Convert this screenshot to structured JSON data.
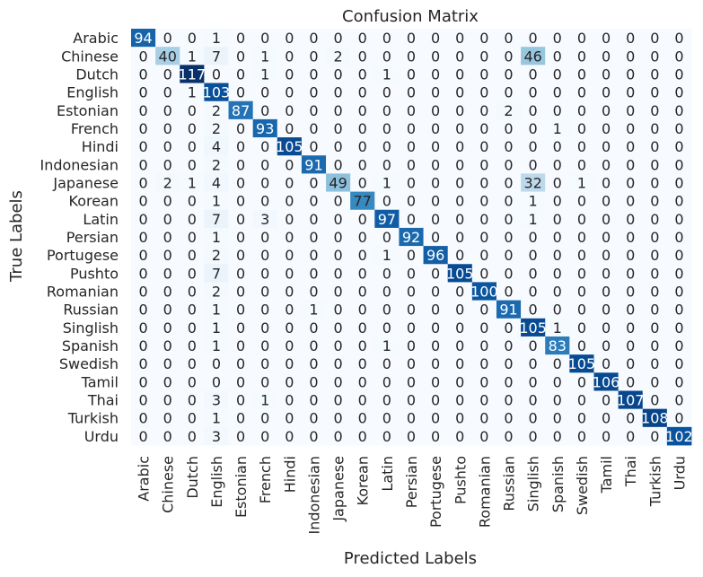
{
  "chart_data": {
    "type": "heatmap",
    "title": "Confusion Matrix",
    "xlabel": "Predicted Labels",
    "ylabel": "True Labels",
    "labels": [
      "Arabic",
      "Chinese",
      "Dutch",
      "English",
      "Estonian",
      "French",
      "Hindi",
      "Indonesian",
      "Japanese",
      "Korean",
      "Latin",
      "Persian",
      "Portugese",
      "Pushto",
      "Romanian",
      "Russian",
      "Singlish",
      "Spanish",
      "Swedish",
      "Tamil",
      "Thai",
      "Turkish",
      "Urdu"
    ],
    "matrix": [
      [
        94,
        0,
        0,
        1,
        0,
        0,
        0,
        0,
        0,
        0,
        0,
        0,
        0,
        0,
        0,
        0,
        0,
        0,
        0,
        0,
        0,
        0,
        0
      ],
      [
        0,
        40,
        1,
        7,
        0,
        1,
        0,
        0,
        2,
        0,
        0,
        0,
        0,
        0,
        0,
        0,
        46,
        0,
        0,
        0,
        0,
        0,
        0
      ],
      [
        0,
        0,
        117,
        0,
        0,
        1,
        0,
        0,
        0,
        0,
        1,
        0,
        0,
        0,
        0,
        0,
        0,
        0,
        0,
        0,
        0,
        0,
        0
      ],
      [
        0,
        0,
        1,
        103,
        0,
        0,
        0,
        0,
        0,
        0,
        0,
        0,
        0,
        0,
        0,
        0,
        0,
        0,
        0,
        0,
        0,
        0,
        0
      ],
      [
        0,
        0,
        0,
        2,
        87,
        0,
        0,
        0,
        0,
        0,
        0,
        0,
        0,
        0,
        0,
        2,
        0,
        0,
        0,
        0,
        0,
        0,
        0
      ],
      [
        0,
        0,
        0,
        2,
        0,
        93,
        0,
        0,
        0,
        0,
        0,
        0,
        0,
        0,
        0,
        0,
        0,
        1,
        0,
        0,
        0,
        0,
        0
      ],
      [
        0,
        0,
        0,
        4,
        0,
        0,
        105,
        0,
        0,
        0,
        0,
        0,
        0,
        0,
        0,
        0,
        0,
        0,
        0,
        0,
        0,
        0,
        0
      ],
      [
        0,
        0,
        0,
        2,
        0,
        0,
        0,
        91,
        0,
        0,
        0,
        0,
        0,
        0,
        0,
        0,
        0,
        0,
        0,
        0,
        0,
        0,
        0
      ],
      [
        0,
        2,
        1,
        4,
        0,
        0,
        0,
        0,
        49,
        0,
        1,
        0,
        0,
        0,
        0,
        0,
        32,
        0,
        1,
        0,
        0,
        0,
        0
      ],
      [
        0,
        0,
        0,
        1,
        0,
        0,
        0,
        0,
        0,
        77,
        0,
        0,
        0,
        0,
        0,
        0,
        1,
        0,
        0,
        0,
        0,
        0,
        0
      ],
      [
        0,
        0,
        0,
        7,
        0,
        3,
        0,
        0,
        0,
        0,
        97,
        0,
        0,
        0,
        0,
        0,
        1,
        0,
        0,
        0,
        0,
        0,
        0
      ],
      [
        0,
        0,
        0,
        1,
        0,
        0,
        0,
        0,
        0,
        0,
        0,
        92,
        0,
        0,
        0,
        0,
        0,
        0,
        0,
        0,
        0,
        0,
        0
      ],
      [
        0,
        0,
        0,
        2,
        0,
        0,
        0,
        0,
        0,
        0,
        1,
        0,
        96,
        0,
        0,
        0,
        0,
        0,
        0,
        0,
        0,
        0,
        0
      ],
      [
        0,
        0,
        0,
        7,
        0,
        0,
        0,
        0,
        0,
        0,
        0,
        0,
        0,
        105,
        0,
        0,
        0,
        0,
        0,
        0,
        0,
        0,
        0
      ],
      [
        0,
        0,
        0,
        2,
        0,
        0,
        0,
        0,
        0,
        0,
        0,
        0,
        0,
        0,
        100,
        0,
        0,
        0,
        0,
        0,
        0,
        0,
        0
      ],
      [
        0,
        0,
        0,
        1,
        0,
        0,
        0,
        1,
        0,
        0,
        0,
        0,
        0,
        0,
        0,
        91,
        0,
        0,
        0,
        0,
        0,
        0,
        0
      ],
      [
        0,
        0,
        0,
        1,
        0,
        0,
        0,
        0,
        0,
        0,
        0,
        0,
        0,
        0,
        0,
        0,
        105,
        1,
        0,
        0,
        0,
        0,
        0
      ],
      [
        0,
        0,
        0,
        1,
        0,
        0,
        0,
        0,
        0,
        0,
        1,
        0,
        0,
        0,
        0,
        0,
        0,
        83,
        0,
        0,
        0,
        0,
        0
      ],
      [
        0,
        0,
        0,
        0,
        0,
        0,
        0,
        0,
        0,
        0,
        0,
        0,
        0,
        0,
        0,
        0,
        0,
        0,
        105,
        0,
        0,
        0,
        0
      ],
      [
        0,
        0,
        0,
        0,
        0,
        0,
        0,
        0,
        0,
        0,
        0,
        0,
        0,
        0,
        0,
        0,
        0,
        0,
        0,
        106,
        0,
        0,
        0
      ],
      [
        0,
        0,
        0,
        3,
        0,
        1,
        0,
        0,
        0,
        0,
        0,
        0,
        0,
        0,
        0,
        0,
        0,
        0,
        0,
        0,
        107,
        0,
        0
      ],
      [
        0,
        0,
        0,
        1,
        0,
        0,
        0,
        0,
        0,
        0,
        0,
        0,
        0,
        0,
        0,
        0,
        0,
        0,
        0,
        0,
        0,
        108,
        0
      ],
      [
        0,
        0,
        0,
        3,
        0,
        0,
        0,
        0,
        0,
        0,
        0,
        0,
        0,
        0,
        0,
        0,
        0,
        0,
        0,
        0,
        0,
        0,
        102
      ]
    ],
    "colormap": "Blues",
    "vmin": 0,
    "vmax": 117,
    "colorbar": false,
    "grid": false
  }
}
